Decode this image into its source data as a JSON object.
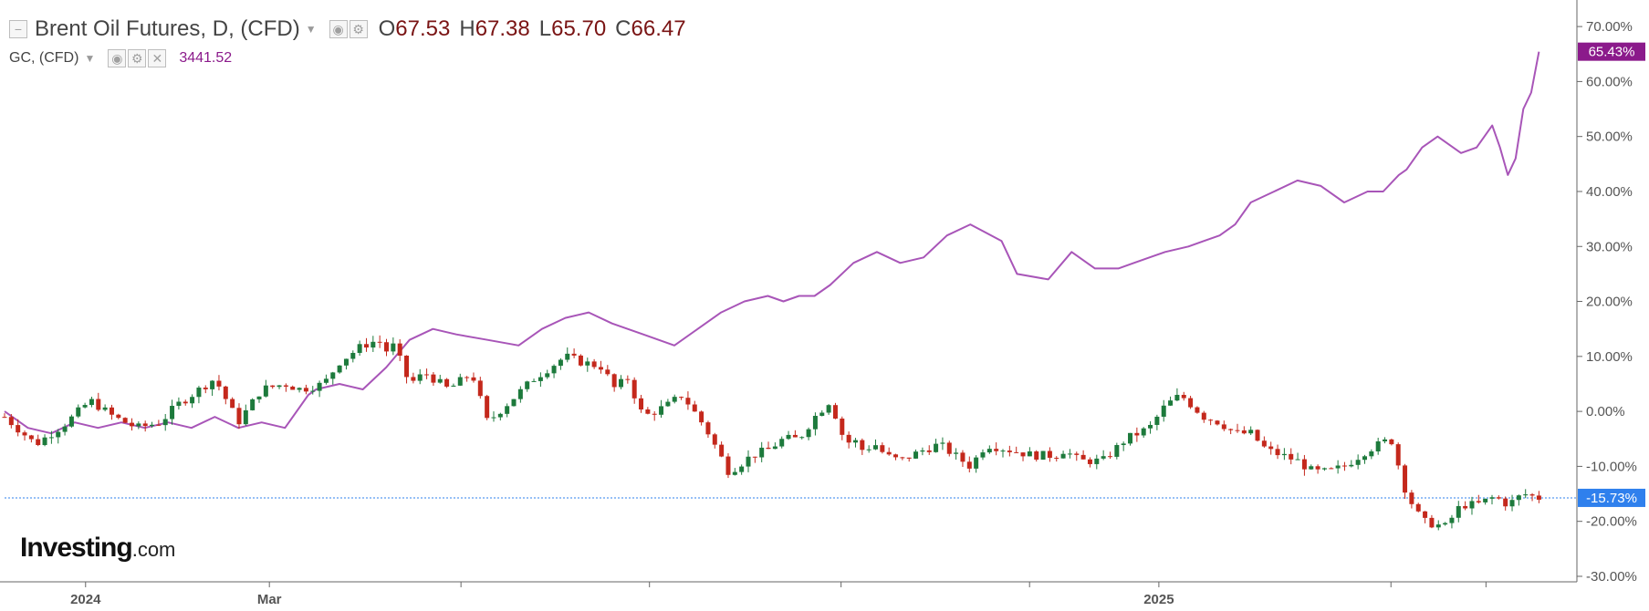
{
  "legend": {
    "main_title": "Brent Oil Futures, D, (CFD)",
    "main_collapse_icon": "collapse-square-icon",
    "main_ctl_icons": [
      "eye-icon",
      "gear-icon"
    ],
    "o_label": "O",
    "o_value": "67.53",
    "h_label": "H",
    "h_value": "67.38",
    "l_label": "L",
    "l_value": "65.70",
    "c_label": "C",
    "c_value": "66.47",
    "compare_title": "GC, (CFD)",
    "compare_ctl_icons": [
      "eye-icon",
      "gear-icon",
      "close-icon"
    ],
    "compare_value": "3441.52"
  },
  "logo": {
    "brand": "Investing",
    "suffix": ".com"
  },
  "colors": {
    "up_candle": "#1d7a3c",
    "down_candle": "#c4281c",
    "compare_line": "#a855b8",
    "compare_badge": "#8b1a8b",
    "current_badge": "#2f80ed",
    "current_line": "#2f80ed",
    "axis": "#666666"
  },
  "chart_data": {
    "type": "candlestick_with_comparison_line",
    "y_axis": {
      "unit": "percent change",
      "ylim": [
        -31,
        74
      ],
      "ticks": [
        "70.00%",
        "60.00%",
        "50.00%",
        "40.00%",
        "30.00%",
        "20.00%",
        "10.00%",
        "0.00%",
        "-10.00%",
        "-20.00%",
        "-30.00%"
      ]
    },
    "x_axis": {
      "tick_labels": [
        "2024",
        "Mar",
        "2025"
      ],
      "tick_label_positions_index": [
        0.052,
        0.17,
        0.741
      ],
      "minor_tick_positions_index": [
        0.052,
        0.17,
        0.293,
        0.414,
        0.537,
        0.658,
        0.741,
        0.89,
        0.951
      ]
    },
    "current_badges": {
      "compare": "65.43%",
      "main": "-15.73%"
    },
    "current_value": -15.73,
    "series": [
      {
        "name": "GC, (CFD)",
        "kind": "line",
        "x": [
          0.0,
          0.015,
          0.03,
          0.045,
          0.06,
          0.075,
          0.09,
          0.105,
          0.12,
          0.135,
          0.15,
          0.165,
          0.18,
          0.195,
          0.2,
          0.215,
          0.23,
          0.245,
          0.26,
          0.275,
          0.29,
          0.31,
          0.33,
          0.345,
          0.36,
          0.375,
          0.39,
          0.41,
          0.43,
          0.445,
          0.46,
          0.475,
          0.49,
          0.5,
          0.51,
          0.52,
          0.53,
          0.545,
          0.56,
          0.575,
          0.59,
          0.605,
          0.62,
          0.64,
          0.65,
          0.67,
          0.685,
          0.7,
          0.715,
          0.725,
          0.735,
          0.745,
          0.76,
          0.77,
          0.78,
          0.79,
          0.8,
          0.815,
          0.83,
          0.845,
          0.86,
          0.875,
          0.885,
          0.895,
          0.9,
          0.91,
          0.92,
          0.935,
          0.945,
          0.955,
          0.96,
          0.965,
          0.97,
          0.975,
          0.98,
          0.985
        ],
        "values": [
          0,
          -3,
          -4,
          -2,
          -3,
          -2,
          -3,
          -2,
          -3,
          -1,
          -3,
          -2,
          -3,
          3,
          4,
          5,
          4,
          8,
          13,
          15,
          14,
          13,
          12,
          15,
          17,
          18,
          16,
          14,
          12,
          15,
          18,
          20,
          21,
          20,
          21,
          21,
          23,
          27,
          29,
          27,
          28,
          32,
          34,
          31,
          25,
          24,
          29,
          26,
          26,
          27,
          28,
          29,
          30,
          31,
          32,
          34,
          38,
          40,
          42,
          41,
          38,
          40,
          40,
          43,
          44,
          48,
          50,
          47,
          48,
          52,
          48,
          43,
          46,
          55,
          58,
          65.43
        ]
      },
      {
        "name": "Brent Oil Futures, D, (CFD)",
        "kind": "candlestick",
        "x": [
          0.0,
          0.02,
          0.04,
          0.055,
          0.07,
          0.085,
          0.1,
          0.11,
          0.12,
          0.135,
          0.15,
          0.165,
          0.18,
          0.19,
          0.205,
          0.215,
          0.23,
          0.24,
          0.245,
          0.25,
          0.26,
          0.27,
          0.285,
          0.29,
          0.295,
          0.3,
          0.31,
          0.325,
          0.34,
          0.355,
          0.36,
          0.37,
          0.385,
          0.39,
          0.4,
          0.41,
          0.425,
          0.435,
          0.45,
          0.465,
          0.48,
          0.49,
          0.5,
          0.51,
          0.52,
          0.53,
          0.54,
          0.545,
          0.55,
          0.56,
          0.565,
          0.575,
          0.59,
          0.6,
          0.615,
          0.62,
          0.63,
          0.645,
          0.66,
          0.675,
          0.68,
          0.69,
          0.705,
          0.72,
          0.735,
          0.745,
          0.755,
          0.77,
          0.78,
          0.79,
          0.8,
          0.81,
          0.83,
          0.84,
          0.85,
          0.86,
          0.875,
          0.89,
          0.9,
          0.91,
          0.925,
          0.935,
          0.945,
          0.955,
          0.96,
          0.965,
          0.975,
          0.985
        ],
        "values": [
          -1,
          -6,
          -2,
          2,
          -1,
          -3,
          -2,
          1,
          3,
          6,
          -2,
          4,
          5,
          4,
          5,
          9,
          12,
          13,
          11,
          12,
          5,
          7,
          4,
          5,
          6,
          7,
          -2,
          2,
          6,
          9,
          10,
          9,
          8,
          4,
          6,
          -1,
          1,
          3,
          -3,
          -11,
          -8,
          -7,
          -5,
          -5,
          -1,
          2,
          -6,
          -5,
          -7,
          -6,
          -8,
          -9,
          -7,
          -6,
          -9,
          -10,
          -6,
          -7,
          -8,
          -8,
          -7,
          -9,
          -9,
          -5,
          -3,
          1,
          3,
          -1,
          -2,
          -4,
          -4,
          -7,
          -9,
          -11,
          -11,
          -10,
          -7,
          -5,
          -15,
          -20,
          -21,
          -17,
          -17,
          -15.73,
          -16,
          -17,
          -15,
          -15.73
        ]
      }
    ]
  }
}
